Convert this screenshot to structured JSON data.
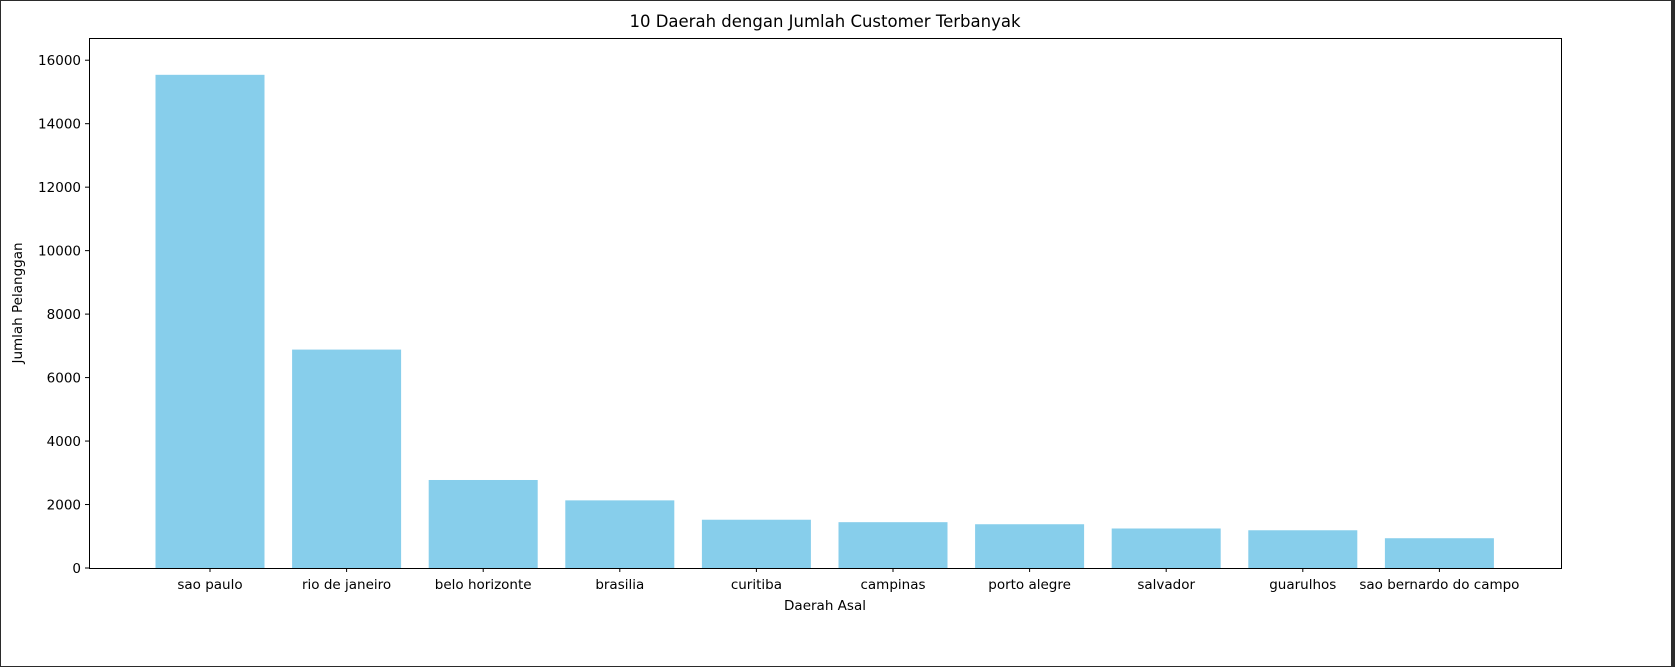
{
  "chart_data": {
    "type": "bar",
    "title": "10 Daerah dengan Jumlah Customer Terbanyak",
    "xlabel": "Daerah Asal",
    "ylabel": "Jumlah Pelanggan",
    "categories": [
      "sao paulo",
      "rio de janeiro",
      "belo horizonte",
      "brasilia",
      "curitiba",
      "campinas",
      "porto alegre",
      "salvador",
      "guarulhos",
      "sao bernardo do campo"
    ],
    "values": [
      15540,
      6882,
      2773,
      2131,
      1521,
      1444,
      1379,
      1245,
      1189,
      938
    ],
    "ylim": [
      0,
      16700
    ],
    "yticks": [
      0,
      2000,
      4000,
      6000,
      8000,
      10000,
      12000,
      14000,
      16000
    ],
    "ytick_labels": [
      "0",
      "2000",
      "4000",
      "6000",
      "8000",
      "10000",
      "12000",
      "14000",
      "16000"
    ],
    "bar_color": "#87CEEB",
    "grid": false,
    "legend": "none"
  }
}
